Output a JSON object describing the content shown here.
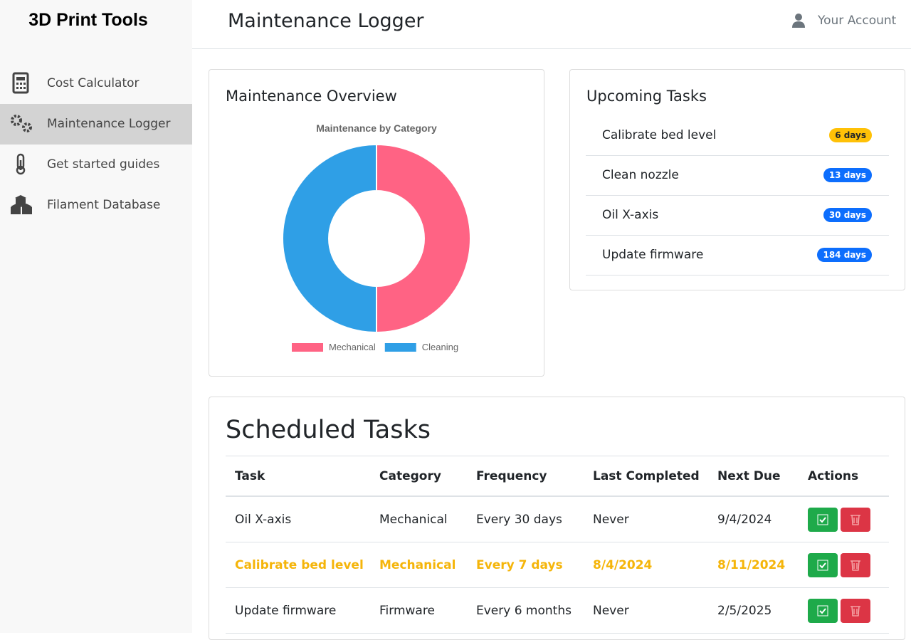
{
  "sidebar": {
    "brand": "3D Print Tools",
    "nav": [
      "Cost Calculator",
      "Maintenance Logger",
      "Get started guides",
      "Filament Database"
    ],
    "active": 1
  },
  "header": {
    "title": "Maintenance Logger",
    "account": "Your Account"
  },
  "overview": {
    "title": "Maintenance Overview"
  },
  "chart_data": {
    "type": "doughnut",
    "title": "Maintenance by Category",
    "categories": [
      "Mechanical",
      "Cleaning"
    ],
    "values": [
      1,
      1
    ],
    "colors": [
      "#ff6384",
      "#2f9fe6"
    ]
  },
  "upcoming": {
    "title": "Upcoming Tasks",
    "items": [
      {
        "task": "Calibrate bed level",
        "due": "6 days",
        "badge_color": "#ffc107",
        "badge_text": "#212529"
      },
      {
        "task": "Clean nozzle",
        "due": "13 days",
        "badge_color": "#0d6efd",
        "badge_text": "#ffffff"
      },
      {
        "task": "Oil X-axis",
        "due": "30 days",
        "badge_color": "#0d6efd",
        "badge_text": "#ffffff"
      },
      {
        "task": "Update firmware",
        "due": "184 days",
        "badge_color": "#0d6efd",
        "badge_text": "#ffffff"
      }
    ]
  },
  "scheduled": {
    "title": "Scheduled Tasks",
    "columns": [
      "Task",
      "Category",
      "Frequency",
      "Last Completed",
      "Next Due",
      "Actions"
    ],
    "rows": [
      {
        "cells": [
          "Oil X-axis",
          "Mechanical",
          "Every 30 days",
          "Never",
          "9/4/2024"
        ],
        "highlight": false
      },
      {
        "cells": [
          "Calibrate bed level",
          "Mechanical",
          "Every 7 days",
          "8/4/2024",
          "8/11/2024"
        ],
        "highlight": true
      },
      {
        "cells": [
          "Update firmware",
          "Firmware",
          "Every 6 months",
          "Never",
          "2/5/2025"
        ],
        "highlight": false
      }
    ]
  }
}
